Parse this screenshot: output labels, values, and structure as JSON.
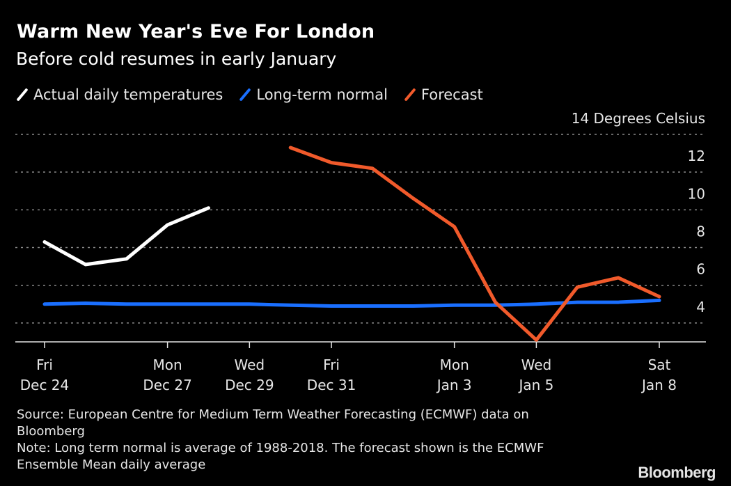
{
  "header": {
    "title": "Warm New Year's Eve For London",
    "subtitle": "Before cold resumes in early January"
  },
  "legend": [
    {
      "label": "Actual daily temperatures",
      "color": "#ffffff"
    },
    {
      "label": "Long-term normal",
      "color": "#1a6fff"
    },
    {
      "label": "Forecast",
      "color": "#f15a2b"
    }
  ],
  "footer": {
    "source": "Source: European Centre for Medium Term Weather Forecasting (ECMWF) data on Bloomberg",
    "note": "Note: Long term normal is average of 1988-2018. The forecast shown is the ECMWF Ensemble Mean daily average",
    "brand": "Bloomberg"
  },
  "chart_data": {
    "type": "line",
    "title": "Warm New Year's Eve For London",
    "subtitle": "Before cold resumes in early January",
    "xlabel": "",
    "ylabel": "Degrees Celsius",
    "y_unit_label": "14 Degrees Celsius",
    "ylim": [
      3,
      14
    ],
    "yticks": [
      4,
      6,
      8,
      10,
      12,
      14
    ],
    "ytick_labels": [
      "4",
      "6",
      "8",
      "10",
      "12",
      "14 Degrees Celsius"
    ],
    "y_axis_position": "right",
    "grid": true,
    "legend_position": "top-left",
    "x": [
      "Dec 24",
      "Dec 25",
      "Dec 26",
      "Dec 27",
      "Dec 28",
      "Dec 29",
      "Dec 30",
      "Dec 31",
      "Jan 1",
      "Jan 2",
      "Jan 3",
      "Jan 4",
      "Jan 5",
      "Jan 6",
      "Jan 7",
      "Jan 8"
    ],
    "xticks": [
      {
        "index": 0,
        "day": "Fri",
        "date": "Dec 24"
      },
      {
        "index": 3,
        "day": "Mon",
        "date": "Dec 27"
      },
      {
        "index": 5,
        "day": "Wed",
        "date": "Dec 29"
      },
      {
        "index": 7,
        "day": "Fri",
        "date": "Dec 31"
      },
      {
        "index": 10,
        "day": "Mon",
        "date": "Jan 3"
      },
      {
        "index": 12,
        "day": "Wed",
        "date": "Jan 5"
      },
      {
        "index": 15,
        "day": "Sat",
        "date": "Jan 8"
      }
    ],
    "series": [
      {
        "name": "Actual daily temperatures",
        "color": "#ffffff",
        "values": [
          8.3,
          7.1,
          7.4,
          9.2,
          10.1,
          null,
          null,
          null,
          null,
          null,
          null,
          null,
          null,
          null,
          null,
          null
        ]
      },
      {
        "name": "Long-term normal",
        "color": "#1a6fff",
        "values": [
          5.0,
          5.05,
          5.0,
          5.0,
          5.0,
          5.0,
          4.95,
          4.9,
          4.9,
          4.9,
          4.95,
          4.95,
          5.0,
          5.1,
          5.1,
          5.2
        ]
      },
      {
        "name": "Forecast",
        "color": "#f15a2b",
        "values": [
          null,
          null,
          null,
          null,
          null,
          null,
          13.3,
          12.5,
          12.2,
          10.6,
          9.1,
          5.1,
          3.1,
          5.9,
          6.4,
          5.4
        ]
      }
    ]
  }
}
